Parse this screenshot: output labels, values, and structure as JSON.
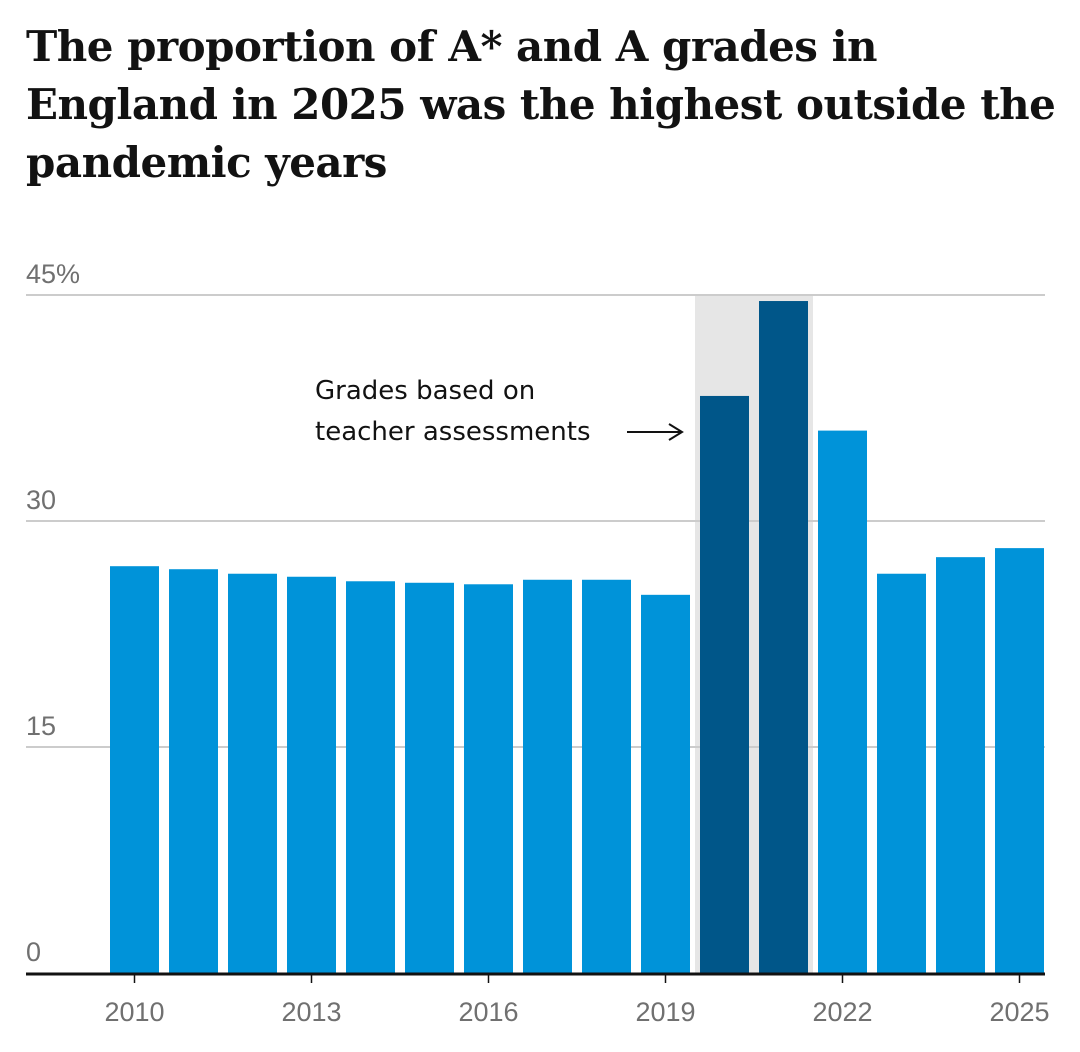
{
  "title": "The proportion of A* and A grades in England in 2025 was the highest outside the pandemic years",
  "colors": {
    "bar": "#0093d9",
    "bar_highlight": "#005689",
    "shade": "#e6e6e6",
    "grid": "#cccccc",
    "axis": "#121212"
  },
  "annotation": {
    "line1": "Grades based on",
    "line2": "teacher assessments"
  },
  "chart_data": {
    "type": "bar",
    "title": "The proportion of A* and A grades in England in 2025 was the highest outside the pandemic years",
    "xlabel": "",
    "ylabel": "",
    "categories": [
      "2010",
      "2011",
      "2012",
      "2013",
      "2014",
      "2015",
      "2016",
      "2017",
      "2018",
      "2019",
      "2020",
      "2021",
      "2022",
      "2023",
      "2024",
      "2025"
    ],
    "values": [
      27.0,
      26.8,
      26.5,
      26.3,
      26.0,
      25.9,
      25.8,
      26.1,
      26.1,
      25.1,
      38.3,
      44.6,
      36.0,
      26.5,
      27.6,
      28.2
    ],
    "highlighted": [
      "2020",
      "2021"
    ],
    "shaded_range": [
      "2020",
      "2021"
    ],
    "ylim": [
      0,
      45
    ],
    "y_ticks": [
      0,
      15,
      30,
      45
    ],
    "y_tick_labels": [
      "0",
      "15",
      "30",
      "45%"
    ],
    "x_tick_labels": [
      "2010",
      "2013",
      "2016",
      "2019",
      "2022",
      "2025"
    ],
    "grid": true,
    "legend": "none"
  }
}
